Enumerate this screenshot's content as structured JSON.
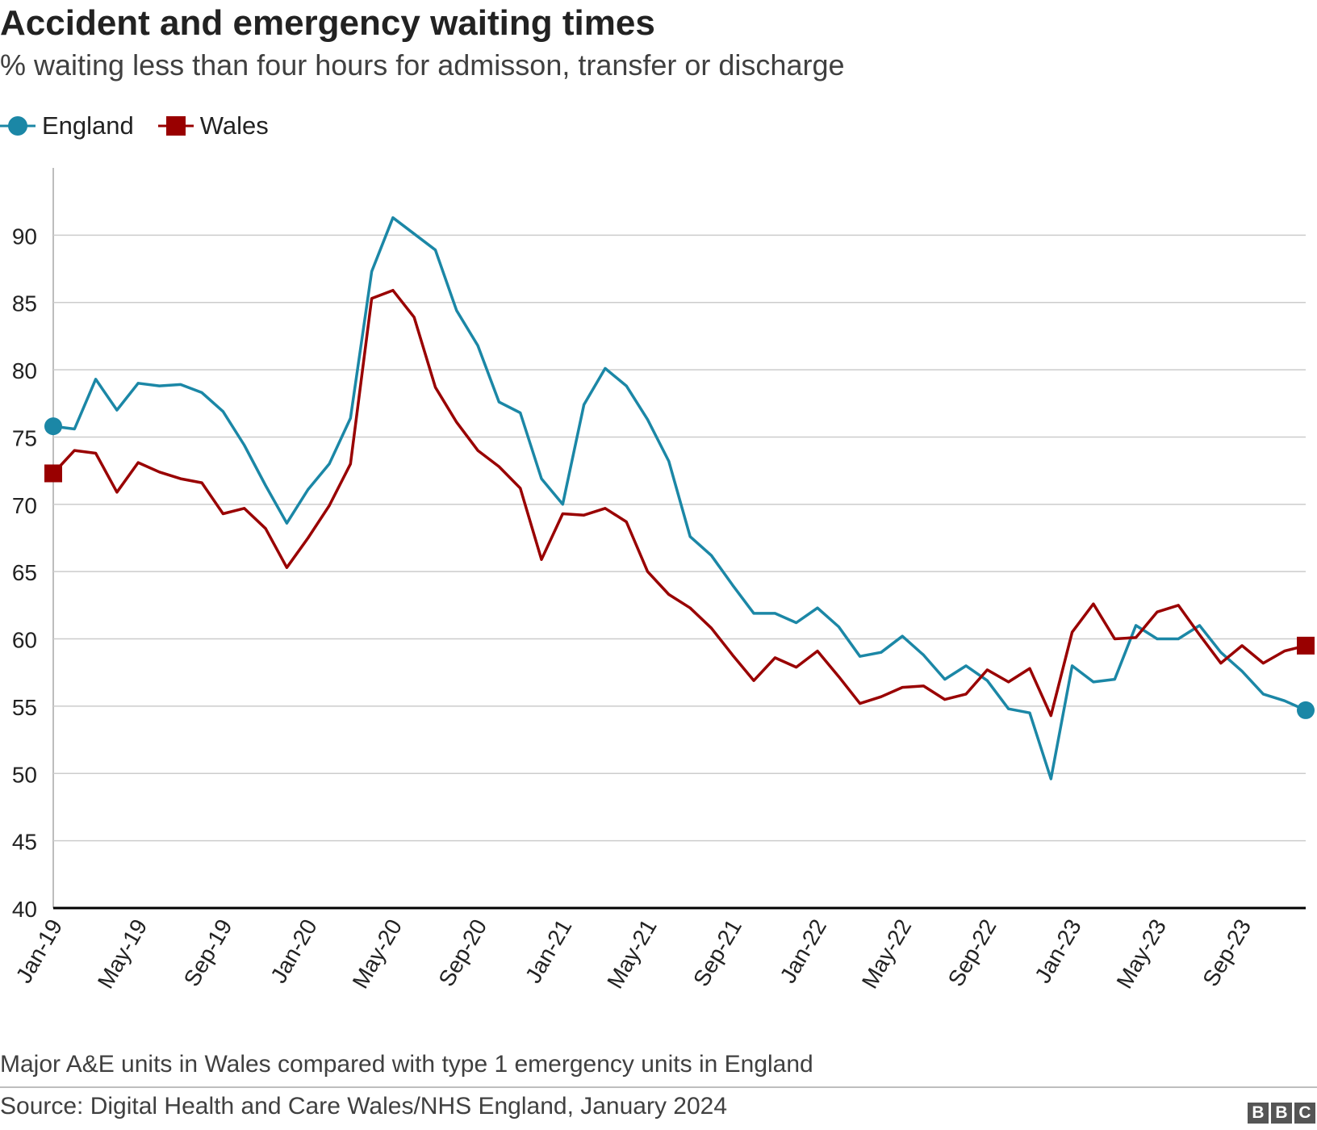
{
  "title": "Accident and emergency waiting times",
  "subtitle": "% waiting less than four hours for admisson, transfer or discharge",
  "legend": [
    {
      "label": "England",
      "color": "#1b87a6",
      "marker": "circle"
    },
    {
      "label": "Wales",
      "color": "#990000",
      "marker": "square"
    }
  ],
  "note": "Major A&E units in Wales compared with type 1 emergency units in England",
  "source": "Source: Digital Health and Care Wales/NHS England, January 2024",
  "logo": [
    "B",
    "B",
    "C"
  ],
  "chart_data": {
    "type": "line",
    "title": "Accident and emergency waiting times",
    "subtitle": "% waiting less than four hours for admisson, transfer or discharge",
    "xlabel": "",
    "ylabel": "",
    "ylim": [
      40,
      95
    ],
    "yticks": [
      40,
      45,
      50,
      55,
      60,
      65,
      70,
      75,
      80,
      85,
      90
    ],
    "grid": true,
    "legend_position": "top-left",
    "x": [
      "Jan-19",
      "Feb-19",
      "Mar-19",
      "Apr-19",
      "May-19",
      "Jun-19",
      "Jul-19",
      "Aug-19",
      "Sep-19",
      "Oct-19",
      "Nov-19",
      "Dec-19",
      "Jan-20",
      "Feb-20",
      "Mar-20",
      "Apr-20",
      "May-20",
      "Jun-20",
      "Jul-20",
      "Aug-20",
      "Sep-20",
      "Oct-20",
      "Nov-20",
      "Dec-20",
      "Jan-21",
      "Feb-21",
      "Mar-21",
      "Apr-21",
      "May-21",
      "Jun-21",
      "Jul-21",
      "Aug-21",
      "Sep-21",
      "Oct-21",
      "Nov-21",
      "Dec-21",
      "Jan-22",
      "Feb-22",
      "Mar-22",
      "Apr-22",
      "May-22",
      "Jun-22",
      "Jul-22",
      "Aug-22",
      "Sep-22",
      "Oct-22",
      "Nov-22",
      "Dec-22",
      "Jan-23",
      "Feb-23",
      "Mar-23",
      "Apr-23",
      "May-23",
      "Jun-23",
      "Jul-23",
      "Aug-23",
      "Sep-23",
      "Oct-23",
      "Nov-23",
      "Dec-23"
    ],
    "xticks": [
      "Jan-19",
      "May-19",
      "Sep-19",
      "Jan-20",
      "May-20",
      "Sep-20",
      "Jan-21",
      "May-21",
      "Sep-21",
      "Jan-22",
      "May-22",
      "Sep-22",
      "Jan-23",
      "May-23",
      "Sep-23"
    ],
    "series": [
      {
        "name": "England",
        "color": "#1b87a6",
        "marker": "circle",
        "values": [
          75.8,
          75.6,
          79.3,
          77.0,
          79.0,
          78.8,
          78.9,
          78.3,
          76.9,
          74.4,
          71.4,
          68.6,
          71.1,
          73.0,
          76.4,
          87.3,
          91.3,
          90.1,
          88.9,
          84.4,
          81.8,
          77.6,
          76.8,
          71.9,
          70.0,
          77.4,
          80.1,
          78.8,
          76.3,
          73.2,
          67.6,
          66.2,
          64.0,
          61.9,
          61.9,
          61.2,
          62.3,
          60.9,
          58.7,
          59.0,
          60.2,
          58.8,
          57.0,
          58.0,
          56.9,
          54.8,
          54.5,
          49.6,
          58.0,
          56.8,
          57.0,
          61.0,
          60.0,
          60.0,
          61.0,
          59.0,
          57.6,
          55.9,
          55.4,
          54.7
        ]
      },
      {
        "name": "Wales",
        "color": "#990000",
        "marker": "square",
        "values": [
          72.3,
          74.0,
          73.8,
          70.9,
          73.1,
          72.4,
          71.9,
          71.6,
          69.3,
          69.7,
          68.2,
          65.3,
          67.5,
          69.9,
          73.0,
          85.3,
          85.9,
          83.9,
          78.7,
          76.1,
          74.0,
          72.8,
          71.2,
          65.9,
          69.3,
          69.2,
          69.7,
          68.7,
          65.0,
          63.3,
          62.3,
          60.8,
          58.8,
          56.9,
          58.6,
          57.9,
          59.1,
          57.2,
          55.2,
          55.7,
          56.4,
          56.5,
          55.5,
          55.9,
          57.7,
          56.8,
          57.8,
          54.3,
          60.5,
          62.6,
          60.0,
          60.1,
          62.0,
          62.5,
          60.3,
          58.2,
          59.5,
          58.2,
          59.1,
          59.5
        ]
      }
    ]
  }
}
